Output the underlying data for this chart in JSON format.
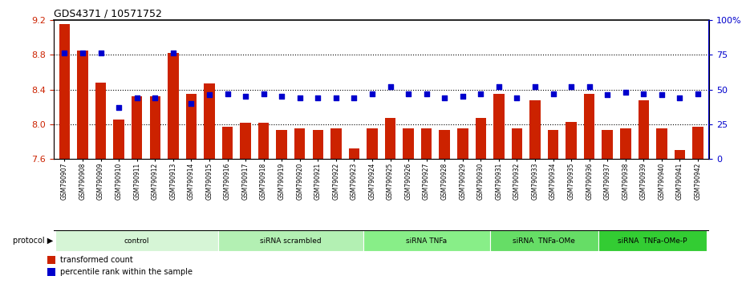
{
  "title": "GDS4371 / 10571752",
  "samples": [
    "GSM790907",
    "GSM790908",
    "GSM790909",
    "GSM790910",
    "GSM790911",
    "GSM790912",
    "GSM790913",
    "GSM790914",
    "GSM790915",
    "GSM790916",
    "GSM790917",
    "GSM790918",
    "GSM790919",
    "GSM790920",
    "GSM790921",
    "GSM790922",
    "GSM790923",
    "GSM790924",
    "GSM790925",
    "GSM790926",
    "GSM790927",
    "GSM790928",
    "GSM790929",
    "GSM790930",
    "GSM790931",
    "GSM790932",
    "GSM790933",
    "GSM790934",
    "GSM790935",
    "GSM790936",
    "GSM790937",
    "GSM790938",
    "GSM790939",
    "GSM790940",
    "GSM790941",
    "GSM790942"
  ],
  "bar_values": [
    9.15,
    8.85,
    8.48,
    8.05,
    8.32,
    8.32,
    8.82,
    8.35,
    8.47,
    7.97,
    8.02,
    8.02,
    7.93,
    7.95,
    7.93,
    7.95,
    7.72,
    7.95,
    8.07,
    7.95,
    7.95,
    7.93,
    7.95,
    8.07,
    8.35,
    7.95,
    8.28,
    7.93,
    8.03,
    8.35,
    7.93,
    7.95,
    8.28,
    7.95,
    7.7,
    7.97
  ],
  "percentile_values": [
    76,
    76,
    76,
    37,
    44,
    44,
    76,
    40,
    46,
    47,
    45,
    47,
    45,
    44,
    44,
    44,
    44,
    47,
    52,
    47,
    47,
    44,
    45,
    47,
    52,
    44,
    52,
    47,
    52,
    52,
    46,
    48,
    47,
    46,
    44,
    47
  ],
  "ylim_left": [
    7.6,
    9.2
  ],
  "ylim_right": [
    0,
    100
  ],
  "bar_color": "#cc2200",
  "dot_color": "#0000cc",
  "protocol_groups": [
    {
      "label": "control",
      "start": 0,
      "end": 8,
      "color": "#ddf5dd"
    },
    {
      "label": "siRNA scrambled",
      "start": 9,
      "end": 16,
      "color": "#bbeeaa"
    },
    {
      "label": "siRNA TNFa",
      "start": 17,
      "end": 23,
      "color": "#99dd88"
    },
    {
      "label": "siRNA  TNFa-OMe",
      "start": 24,
      "end": 29,
      "color": "#77cc66"
    },
    {
      "label": "siRNA  TNFa-OMe-P",
      "start": 30,
      "end": 35,
      "color": "#44bb44"
    }
  ]
}
